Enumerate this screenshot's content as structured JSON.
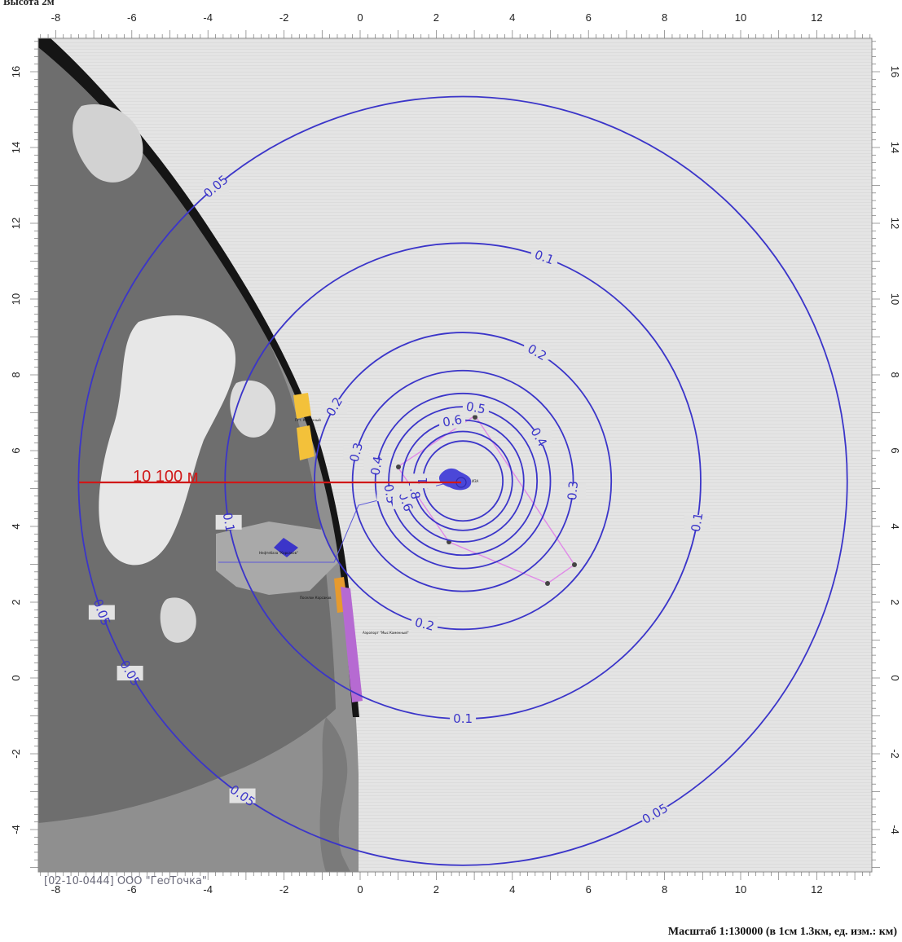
{
  "header": {
    "title": "Высота 2м"
  },
  "axes": {
    "x_ticks": [
      "-8",
      "-6",
      "-4",
      "-2",
      "0",
      "2",
      "4",
      "6",
      "8",
      "10",
      "12"
    ],
    "y_ticks": [
      "16",
      "14",
      "12",
      "10",
      "8",
      "6",
      "4",
      "2",
      "0",
      "-2",
      "-4"
    ],
    "units": "км"
  },
  "scale": {
    "text": "Масштаб 1:130000 (в 1см 1.3км, ед. изм.: км)"
  },
  "credit": {
    "text": "[02-10-0444] ООО \"ГеоТочка\""
  },
  "distance": {
    "label": "10 100 м",
    "color": "#d01818"
  },
  "contours": {
    "color": "#3b35c9",
    "center": {
      "x": 2.7,
      "y": 5.2
    },
    "levels": [
      {
        "value": "0.05",
        "radius_km": 10.1
      },
      {
        "value": "0.1",
        "radius_km": 6.25
      },
      {
        "value": "0.2",
        "radius_km": 3.9
      },
      {
        "value": "0.3",
        "radius_km": 2.9
      },
      {
        "value": "0.4",
        "radius_km": 2.3
      },
      {
        "value": "0.5",
        "radius_km": 1.95
      },
      {
        "value": "0.6",
        "radius_km": 1.6
      },
      {
        "value": "0.8",
        "radius_km": 1.3
      },
      {
        "value": "1",
        "radius_km": 1.05
      }
    ]
  },
  "sites": [
    {
      "label": "Нефтебаза \"Корсаков\""
    },
    {
      "label": "Пгт. Каменный"
    },
    {
      "label": "Поселок Корсаков"
    },
    {
      "label": "Аэропорт \"Мыс Каменный\""
    }
  ],
  "source_label": "ИЗА"
}
